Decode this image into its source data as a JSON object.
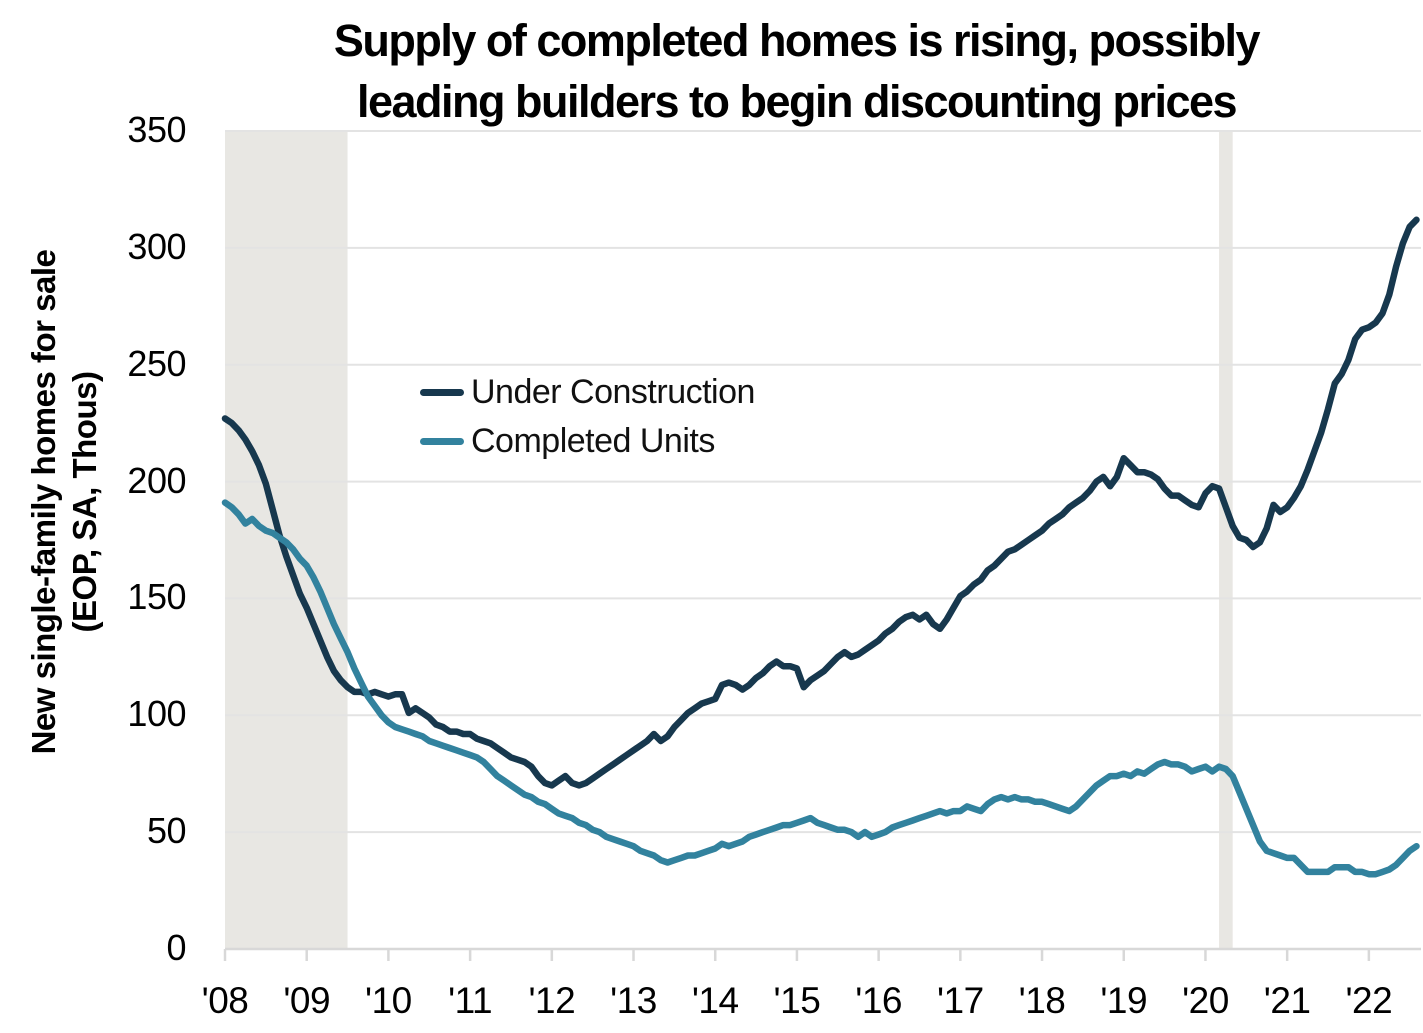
{
  "title": {
    "line1": "Supply of completed homes is rising, possibly",
    "line2": "leading builders to begin discounting prices"
  },
  "y_axis": {
    "title_line1": "New single-family homes for sale",
    "title_line2": "(EOP, SA, Thous)",
    "ticks": [
      0,
      50,
      100,
      150,
      200,
      250,
      300,
      350
    ],
    "min": 0,
    "max": 350
  },
  "x_axis": {
    "tick_labels": [
      "'08",
      "'09",
      "'10",
      "'11",
      "'12",
      "'13",
      "'14",
      "'15",
      "'16",
      "'17",
      "'18",
      "'19",
      "'20",
      "'21",
      "'22"
    ]
  },
  "legend": [
    {
      "label": "Under Construction",
      "color": "#17384E"
    },
    {
      "label": "Completed Units",
      "color": "#32829E"
    }
  ],
  "colors": {
    "under_construction": "#17384E",
    "completed_units": "#32829E",
    "recession_band": "#E8E7E3",
    "gridline": "#E3E3E3",
    "axis": "#D8D8D8",
    "text": "#000000"
  },
  "chart_data": {
    "type": "line",
    "title": "Supply of completed homes is rising, possibly leading builders to begin discounting prices",
    "ylabel": "New single-family homes for sale (EOP, SA, Thous)",
    "ylim": [
      0,
      350
    ],
    "grid": "horizontal",
    "legend_position": "upper-left-inside",
    "frequency": "monthly",
    "start": "2008-01",
    "end": "2022-08",
    "recession_bands": [
      {
        "label": "2008-09 recession",
        "start": "2008-01",
        "end": "2009-07"
      },
      {
        "label": "2020 recession",
        "start": "2020-03",
        "end": "2020-05"
      }
    ],
    "series": [
      {
        "name": "Under Construction",
        "color": "#17384E",
        "values": [
          227,
          225,
          222,
          218,
          213,
          207,
          199,
          188,
          177,
          168,
          160,
          152,
          146,
          139,
          132,
          125,
          119,
          115,
          112,
          110,
          110,
          109,
          110,
          109,
          108,
          109,
          109,
          101,
          103,
          101,
          99,
          96,
          95,
          93,
          93,
          92,
          92,
          90,
          89,
          88,
          86,
          84,
          82,
          81,
          80,
          78,
          74,
          71,
          70,
          72,
          74,
          71,
          70,
          71,
          73,
          75,
          77,
          79,
          81,
          83,
          85,
          87,
          89,
          92,
          89,
          91,
          95,
          98,
          101,
          103,
          105,
          106,
          107,
          113,
          114,
          113,
          111,
          113,
          116,
          118,
          121,
          123,
          121,
          121,
          120,
          112,
          115,
          117,
          119,
          122,
          125,
          127,
          125,
          126,
          128,
          130,
          132,
          135,
          137,
          140,
          142,
          143,
          141,
          143,
          139,
          137,
          141,
          146,
          151,
          153,
          156,
          158,
          162,
          164,
          167,
          170,
          171,
          173,
          175,
          177,
          179,
          182,
          184,
          186,
          189,
          191,
          193,
          196,
          200,
          202,
          198,
          202,
          210,
          207,
          204,
          204,
          203,
          201,
          197,
          194,
          194,
          192,
          190,
          189,
          195,
          198,
          197,
          189,
          181,
          176,
          175,
          172,
          174,
          180,
          190,
          187,
          189,
          193,
          198,
          205,
          213,
          221,
          231,
          242,
          246,
          252,
          261,
          265,
          266,
          268,
          272,
          280,
          292,
          302,
          309,
          312
        ]
      },
      {
        "name": "Completed Units",
        "color": "#32829E",
        "values": [
          191,
          189,
          186,
          182,
          184,
          181,
          179,
          178,
          176,
          174,
          171,
          167,
          164,
          159,
          153,
          146,
          139,
          133,
          127,
          120,
          114,
          108,
          104,
          100,
          97,
          95,
          94,
          93,
          92,
          91,
          89,
          88,
          87,
          86,
          85,
          84,
          83,
          82,
          80,
          77,
          74,
          72,
          70,
          68,
          66,
          65,
          63,
          62,
          60,
          58,
          57,
          56,
          54,
          53,
          51,
          50,
          48,
          47,
          46,
          45,
          44,
          42,
          41,
          40,
          38,
          37,
          38,
          39,
          40,
          40,
          41,
          42,
          43,
          45,
          44,
          45,
          46,
          48,
          49,
          50,
          51,
          52,
          53,
          53,
          54,
          55,
          56,
          54,
          53,
          52,
          51,
          51,
          50,
          48,
          50,
          48,
          49,
          50,
          52,
          53,
          54,
          55,
          56,
          57,
          58,
          59,
          58,
          59,
          59,
          61,
          60,
          59,
          62,
          64,
          65,
          64,
          65,
          64,
          64,
          63,
          63,
          62,
          61,
          60,
          59,
          61,
          64,
          67,
          70,
          72,
          74,
          74,
          75,
          74,
          76,
          75,
          77,
          79,
          80,
          79,
          79,
          78,
          76,
          77,
          78,
          76,
          78,
          77,
          74,
          67,
          60,
          53,
          46,
          42,
          41,
          40,
          39,
          39,
          36,
          33,
          33,
          33,
          33,
          35,
          35,
          35,
          33,
          33,
          32,
          32,
          33,
          34,
          36,
          39,
          42,
          44
        ]
      }
    ]
  }
}
